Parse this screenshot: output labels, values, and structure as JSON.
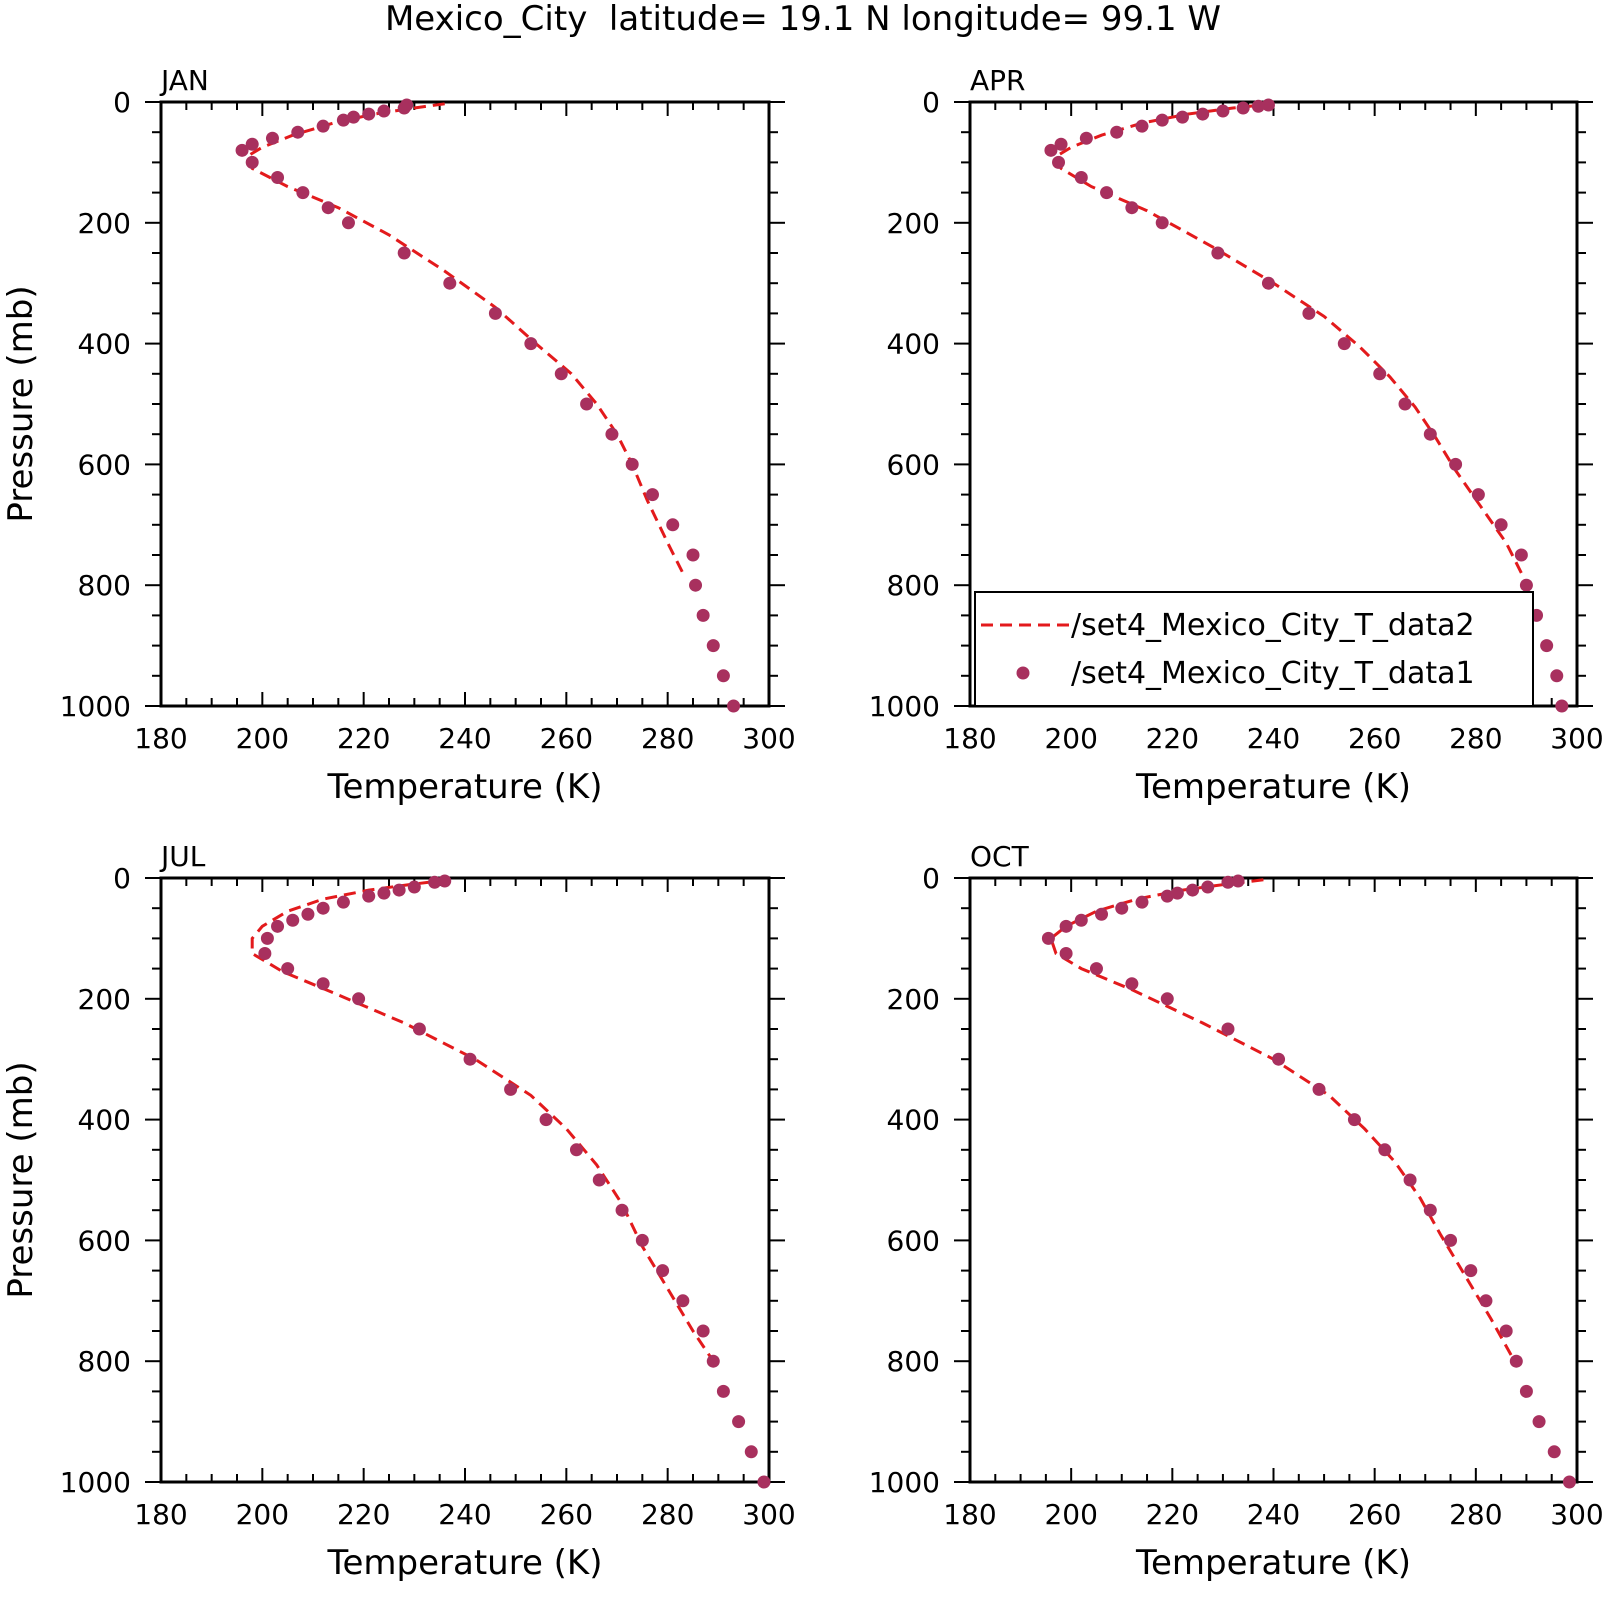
{
  "title": "Mexico_City  latitude= 19.1 N longitude= 99.1 W",
  "colors": {
    "model": "#e31a1c",
    "obs": "#a8305e",
    "axis": "#000000"
  },
  "legend": {
    "model_label": "/set4_Mexico_City_T_data2",
    "obs_label": "/set4_Mexico_City_T_data1",
    "placement": "bottom-right of APR panel"
  },
  "chart_data": [
    {
      "type": "line",
      "panel": "JAN",
      "xlabel": "Temperature (K)",
      "ylabel": "Pressure (mb)",
      "xlim": [
        180,
        300
      ],
      "ylim": [
        1000,
        0
      ],
      "xticks": [
        180,
        200,
        220,
        240,
        260,
        280,
        300
      ],
      "yticks": [
        0,
        200,
        400,
        600,
        800,
        1000
      ],
      "series": [
        {
          "name": "/set4_Mexico_City_T_data2",
          "style": "dashed-line",
          "x": [
            236,
            230,
            222,
            214,
            206,
            200,
            197,
            198,
            205,
            215,
            225,
            236,
            246,
            254,
            261,
            266,
            270,
            273,
            276,
            280,
            283
          ],
          "y": [
            3,
            10,
            20,
            35,
            55,
            75,
            90,
            110,
            140,
            175,
            220,
            280,
            340,
            400,
            450,
            500,
            550,
            600,
            660,
            730,
            780
          ]
        },
        {
          "name": "/set4_Mexico_City_T_data1",
          "style": "points",
          "x": [
            228.5,
            228,
            224,
            221,
            218,
            216,
            212,
            207,
            202,
            198,
            196,
            198,
            203,
            208,
            213,
            217,
            228,
            237,
            246,
            253,
            259,
            264,
            269,
            273,
            277,
            281,
            285,
            285.5,
            287,
            289,
            291,
            293
          ],
          "y": [
            5,
            10,
            15,
            20,
            25,
            30,
            40,
            50,
            60,
            70,
            80,
            100,
            125,
            150,
            175,
            200,
            250,
            300,
            350,
            400,
            450,
            500,
            550,
            600,
            650,
            700,
            750,
            800,
            850,
            900,
            950,
            1000
          ]
        }
      ]
    },
    {
      "type": "line",
      "panel": "APR",
      "xlabel": "Temperature (K)",
      "ylabel": "",
      "xlim": [
        180,
        300
      ],
      "ylim": [
        1000,
        0
      ],
      "xticks": [
        180,
        200,
        220,
        240,
        260,
        280,
        300
      ],
      "yticks": [
        0,
        200,
        400,
        600,
        800,
        1000
      ],
      "series": [
        {
          "name": "/set4_Mexico_City_T_data2",
          "style": "dashed-line",
          "x": [
            240,
            232,
            223,
            214,
            206,
            200,
            197,
            198,
            204,
            215,
            228,
            240,
            250,
            257,
            263,
            268,
            272,
            276,
            281,
            286,
            289,
            290
          ],
          "y": [
            3,
            10,
            20,
            35,
            55,
            75,
            90,
            110,
            140,
            180,
            240,
            300,
            355,
            405,
            455,
            505,
            555,
            610,
            670,
            730,
            780,
            800
          ]
        },
        {
          "name": "/set4_Mexico_City_T_data1",
          "style": "points",
          "x": [
            239,
            237,
            234,
            230,
            226,
            222,
            218,
            214,
            209,
            203,
            198,
            196,
            197.5,
            202,
            207,
            212,
            218,
            229,
            239,
            247,
            254,
            261,
            266,
            271,
            276,
            280.5,
            285,
            289,
            290,
            292,
            294,
            296,
            297
          ],
          "y": [
            5,
            7,
            10,
            15,
            20,
            25,
            30,
            40,
            50,
            60,
            70,
            80,
            100,
            125,
            150,
            175,
            200,
            250,
            300,
            350,
            400,
            450,
            500,
            550,
            600,
            650,
            700,
            750,
            800,
            850,
            900,
            950,
            1000
          ]
        }
      ]
    },
    {
      "type": "line",
      "panel": "JUL",
      "xlabel": "Temperature (K)",
      "ylabel": "Pressure (mb)",
      "xlim": [
        180,
        300
      ],
      "ylim": [
        1000,
        0
      ],
      "xticks": [
        180,
        200,
        220,
        240,
        260,
        280,
        300
      ],
      "yticks": [
        0,
        200,
        400,
        600,
        800,
        1000
      ],
      "series": [
        {
          "name": "/set4_Mexico_City_T_data2",
          "style": "dashed-line",
          "x": [
            237,
            230,
            221,
            212,
            205,
            200,
            198,
            198,
            204,
            214,
            228,
            242,
            253,
            260,
            266,
            271,
            275,
            280,
            285,
            289
          ],
          "y": [
            3,
            10,
            20,
            35,
            55,
            80,
            100,
            125,
            155,
            190,
            240,
            300,
            360,
            415,
            475,
            540,
            610,
            680,
            750,
            800
          ]
        },
        {
          "name": "/set4_Mexico_City_T_data1",
          "style": "points",
          "x": [
            236,
            234,
            230,
            227,
            224,
            221,
            216,
            212,
            209,
            206,
            203,
            201,
            200.5,
            205,
            212,
            219,
            231,
            241,
            249,
            256,
            262,
            266.5,
            271,
            275,
            279,
            283,
            287,
            289,
            291,
            294,
            296.5,
            299
          ],
          "y": [
            5,
            7,
            15,
            20,
            25,
            30,
            40,
            50,
            60,
            70,
            80,
            100,
            125,
            150,
            175,
            200,
            250,
            300,
            350,
            400,
            450,
            500,
            550,
            600,
            650,
            700,
            750,
            800,
            850,
            900,
            950,
            1000
          ]
        }
      ]
    },
    {
      "type": "line",
      "panel": "OCT",
      "xlabel": "Temperature (K)",
      "ylabel": "",
      "xlim": [
        180,
        300
      ],
      "ylim": [
        1000,
        0
      ],
      "xticks": [
        180,
        200,
        220,
        240,
        260,
        280,
        300
      ],
      "yticks": [
        0,
        200,
        400,
        600,
        800,
        1000
      ],
      "series": [
        {
          "name": "/set4_Mexico_City_T_data2",
          "style": "dashed-line",
          "x": [
            238,
            231,
            222,
            213,
            205,
            199,
            196,
            197,
            202,
            212,
            226,
            240,
            251,
            258,
            264,
            269,
            273,
            278,
            283,
            287
          ],
          "y": [
            3,
            10,
            20,
            35,
            55,
            80,
            100,
            125,
            150,
            185,
            240,
            300,
            360,
            415,
            470,
            530,
            590,
            660,
            730,
            790
          ]
        },
        {
          "name": "/set4_Mexico_City_T_data1",
          "style": "points",
          "x": [
            233,
            231,
            227,
            224,
            221,
            219,
            214,
            210,
            206,
            202,
            199,
            195.5,
            199,
            205,
            212,
            219,
            231,
            241,
            249,
            256,
            262,
            267,
            271,
            275,
            279,
            282,
            286,
            288,
            290,
            292.5,
            295.5,
            298.5
          ],
          "y": [
            5,
            7,
            15,
            20,
            25,
            30,
            40,
            50,
            60,
            70,
            80,
            100,
            125,
            150,
            175,
            200,
            250,
            300,
            350,
            400,
            450,
            500,
            550,
            600,
            650,
            700,
            750,
            800,
            850,
            900,
            950,
            1000
          ]
        }
      ]
    }
  ]
}
